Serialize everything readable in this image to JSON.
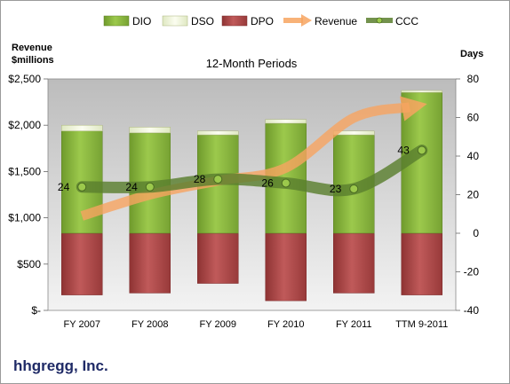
{
  "company": "hhgregg, Inc.",
  "chart_data": {
    "type": "bar",
    "title": "12-Month Periods",
    "y_left_label": [
      "Revenue",
      "$millions"
    ],
    "y_right_label": "Days",
    "categories": [
      "FY 2007",
      "FY 2008",
      "FY 2009",
      "FY 2010",
      "FY 2011",
      "TTM 9-2011"
    ],
    "y_left_ticks": [
      "$-",
      "$500",
      "$1,000",
      "$1,500",
      "$2,000",
      "$2,500"
    ],
    "y_left_range": [
      0,
      2500
    ],
    "y_right_ticks": [
      "-40",
      "-20",
      "0",
      "20",
      "40",
      "60",
      "80"
    ],
    "y_right_range": [
      -40,
      80
    ],
    "legend": [
      "DIO",
      "DSO",
      "DPO",
      "Revenue",
      "CCC"
    ],
    "legend_position": "top",
    "series": [
      {
        "name": "DIO",
        "axis": "days",
        "values": [
          53,
          52,
          51,
          57,
          51,
          73
        ],
        "color": "#8fb840"
      },
      {
        "name": "DSO",
        "axis": "days",
        "values": [
          3,
          3,
          2,
          2,
          2,
          1
        ],
        "color": "#f0f5d8"
      },
      {
        "name": "DPO",
        "axis": "days",
        "values": [
          -32,
          -31,
          -26,
          -35,
          -31,
          -32
        ],
        "color": "#b04a4a"
      },
      {
        "name": "Revenue",
        "axis": "revenue",
        "values": [
          1020,
          1250,
          1400,
          1540,
          2080,
          2220
        ],
        "color": "#f7a460"
      },
      {
        "name": "CCC",
        "axis": "days",
        "values": [
          24,
          24,
          28,
          26,
          23,
          43
        ],
        "color": "#5a7f2e"
      }
    ],
    "data_labels": [
      "24",
      "24",
      "28",
      "26",
      "23",
      "43"
    ],
    "grid": false
  }
}
